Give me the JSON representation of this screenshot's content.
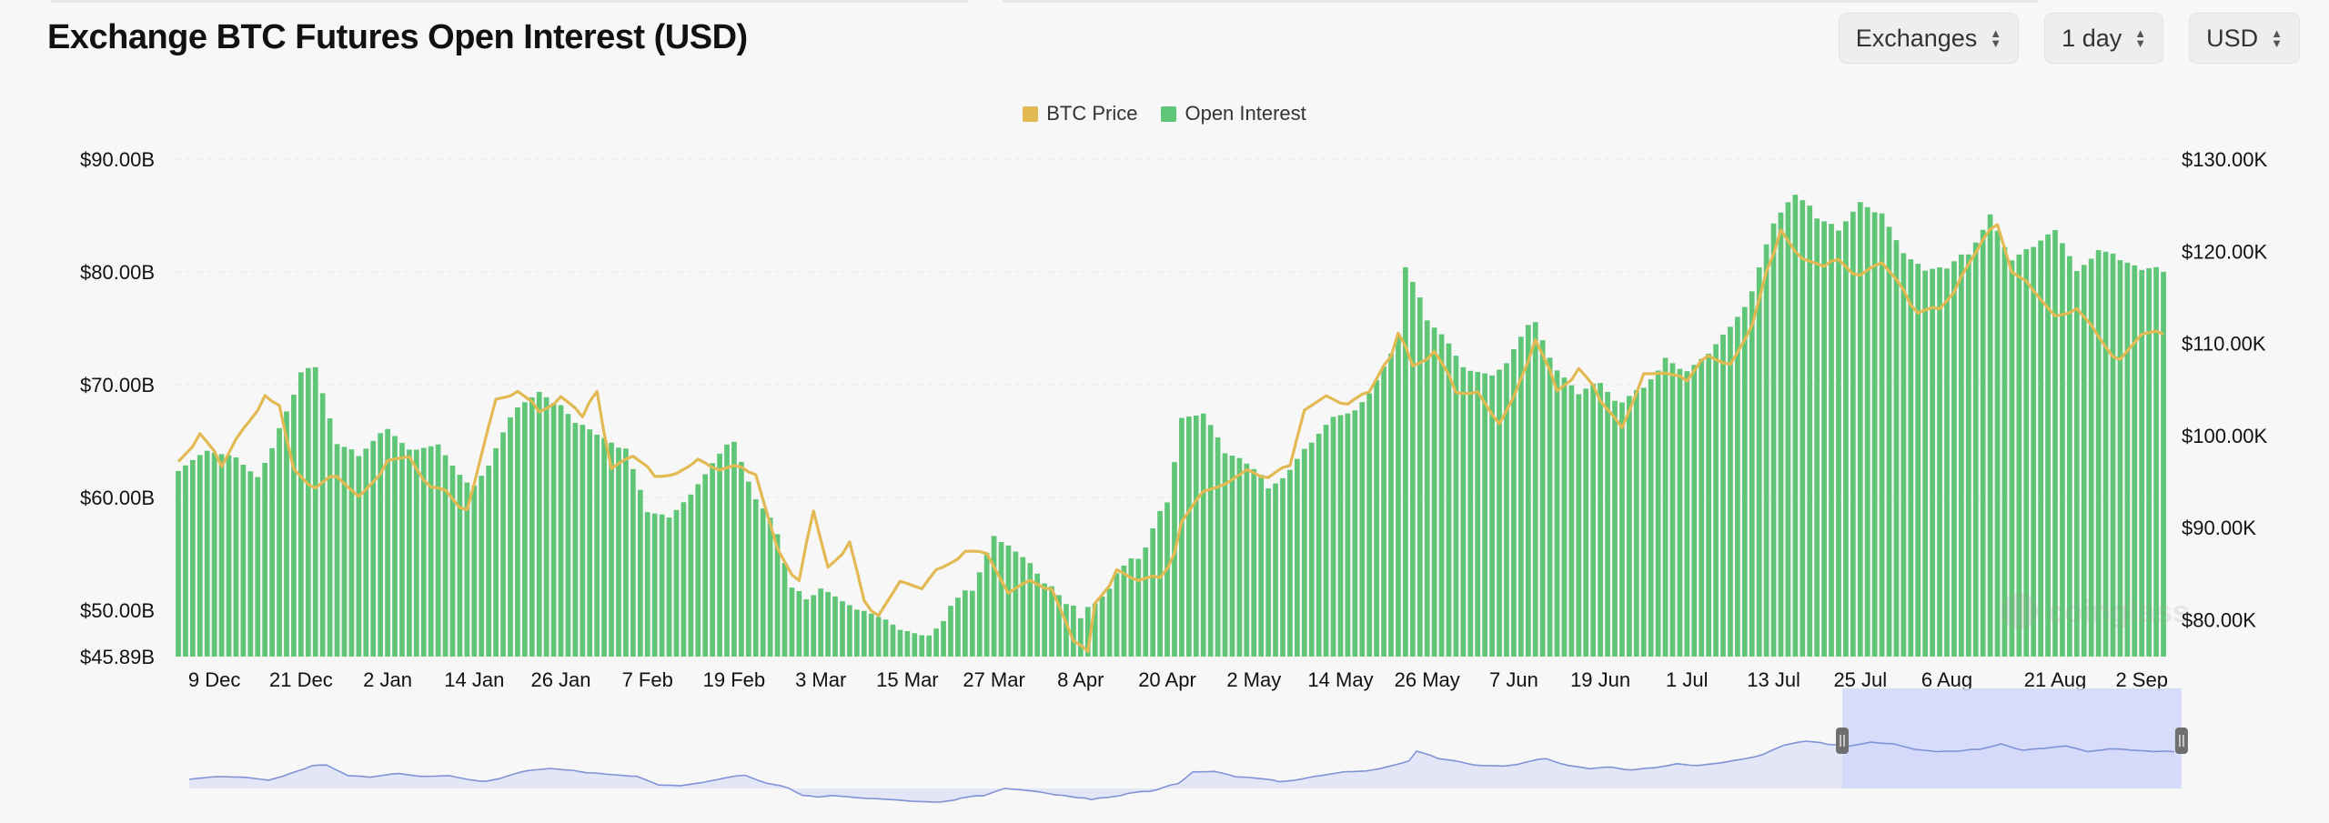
{
  "header": {
    "title": "Exchange BTC Futures Open Interest (USD)",
    "selects": [
      {
        "label": "Exchanges"
      },
      {
        "label": "1 day"
      },
      {
        "label": "USD"
      }
    ]
  },
  "colors": {
    "open_interest": "#5ec676",
    "btc_price": "#e2b953",
    "navigator_line": "#7f93d6",
    "navigator_fill": "#e3e6f7",
    "navigator_window": "#d3d8fb"
  },
  "icons": {
    "select_chevron": "chevron-up-down-icon",
    "navigator_handle": "drag-handle-icon"
  },
  "watermark": "coinglass",
  "chart_data": {
    "type": "bar",
    "title": "Exchange BTC Futures Open Interest (USD)",
    "legend": [
      "BTC Price",
      "Open Interest"
    ],
    "legend_position": "top-center",
    "grid": true,
    "x_tick_labels": [
      "9 Dec",
      "21 Dec",
      "2 Jan",
      "14 Jan",
      "26 Jan",
      "7 Feb",
      "19 Feb",
      "3 Mar",
      "15 Mar",
      "27 Mar",
      "8 Apr",
      "20 Apr",
      "2 May",
      "14 May",
      "26 May",
      "7 Jun",
      "19 Jun",
      "1 Jul",
      "13 Jul",
      "25 Jul",
      "6 Aug",
      "21 Aug",
      "2 Sep"
    ],
    "y_left": {
      "tick_labels": [
        "$45.89B",
        "$50.00B",
        "$60.00B",
        "$70.00B",
        "$80.00B",
        "$90.00B"
      ],
      "min": 45.89,
      "max": 90
    },
    "y_right": {
      "tick_labels": [
        "$80.00K",
        "$90.00K",
        "$100.00K",
        "$110.00K",
        "$120.00K",
        "$130.00K"
      ],
      "min": 76,
      "max": 130
    },
    "navigator": {
      "selected_range": [
        "21 Jul",
        "6 Sep"
      ]
    },
    "series": [
      {
        "name": "Open Interest",
        "type": "bar",
        "unit": "B USD",
        "anchors": [
          [
            "4 Dec",
            62.5
          ],
          [
            "9 Dec",
            64
          ],
          [
            "12 Dec",
            64
          ],
          [
            "15 Dec",
            62
          ],
          [
            "18 Dec",
            66
          ],
          [
            "21 Dec",
            71
          ],
          [
            "23 Dec",
            72
          ],
          [
            "26 Dec",
            65
          ],
          [
            "29 Dec",
            64
          ],
          [
            "2 Jan",
            66
          ],
          [
            "6 Jan",
            64
          ],
          [
            "9 Jan",
            65
          ],
          [
            "12 Jan",
            62
          ],
          [
            "14 Jan",
            61
          ],
          [
            "17 Jan",
            64
          ],
          [
            "20 Jan",
            68
          ],
          [
            "23 Jan",
            69
          ],
          [
            "26 Jan",
            68
          ],
          [
            "29 Jan",
            66
          ],
          [
            "1 Feb",
            65
          ],
          [
            "4 Feb",
            64
          ],
          [
            "7 Feb",
            59
          ],
          [
            "10 Feb",
            58.5
          ],
          [
            "13 Feb",
            60
          ],
          [
            "16 Feb",
            63
          ],
          [
            "19 Feb",
            65
          ],
          [
            "22 Feb",
            60
          ],
          [
            "25 Feb",
            57
          ],
          [
            "27 Feb",
            52
          ],
          [
            "1 Mar",
            51
          ],
          [
            "3 Mar",
            51.5
          ],
          [
            "6 Mar",
            50.5
          ],
          [
            "9 Mar",
            49.5
          ],
          [
            "12 Mar",
            49
          ],
          [
            "15 Mar",
            48
          ],
          [
            "18 Mar",
            48
          ],
          [
            "21 Mar",
            50
          ],
          [
            "24 Mar",
            52
          ],
          [
            "27 Mar",
            57
          ],
          [
            "29 Mar",
            56
          ],
          [
            "1 Apr",
            54.5
          ],
          [
            "4 Apr",
            52
          ],
          [
            "7 Apr",
            50
          ],
          [
            "8 Apr",
            49
          ],
          [
            "10 Apr",
            51
          ],
          [
            "13 Apr",
            53
          ],
          [
            "16 Apr",
            55
          ],
          [
            "18 Apr",
            57
          ],
          [
            "20 Apr",
            60
          ],
          [
            "22 Apr",
            67
          ],
          [
            "25 Apr",
            67
          ],
          [
            "28 Apr",
            64
          ],
          [
            "1 May",
            63
          ],
          [
            "4 May",
            61
          ],
          [
            "7 May",
            62
          ],
          [
            "10 May",
            65
          ],
          [
            "13 May",
            67
          ],
          [
            "16 May",
            68
          ],
          [
            "19 May",
            70
          ],
          [
            "22 May",
            74
          ],
          [
            "23 May",
            80
          ],
          [
            "26 May",
            76
          ],
          [
            "29 May",
            74
          ],
          [
            "1 Jun",
            71
          ],
          [
            "4 Jun",
            71
          ],
          [
            "7 Jun",
            73
          ],
          [
            "10 Jun",
            76
          ],
          [
            "13 Jun",
            71
          ],
          [
            "16 Jun",
            69
          ],
          [
            "19 Jun",
            70
          ],
          [
            "22 Jun",
            68
          ],
          [
            "25 Jun",
            70
          ],
          [
            "28 Jun",
            72
          ],
          [
            "1 Jul",
            71
          ],
          [
            "4 Jul",
            73
          ],
          [
            "7 Jul",
            75
          ],
          [
            "10 Jul",
            78
          ],
          [
            "13 Jul",
            84
          ],
          [
            "16 Jul",
            87
          ],
          [
            "19 Jul",
            85
          ],
          [
            "22 Jul",
            84
          ],
          [
            "25 Jul",
            86
          ],
          [
            "28 Jul",
            85
          ],
          [
            "1 Aug",
            81
          ],
          [
            "3 Aug",
            80
          ],
          [
            "6 Aug",
            80
          ],
          [
            "9 Aug",
            82
          ],
          [
            "12 Aug",
            85
          ],
          [
            "15 Aug",
            81
          ],
          [
            "18 Aug",
            82
          ],
          [
            "21 Aug",
            84
          ],
          [
            "24 Aug",
            80
          ],
          [
            "27 Aug",
            82
          ],
          [
            "30 Aug",
            81
          ],
          [
            "2 Sep",
            80
          ],
          [
            "5 Sep",
            80
          ]
        ]
      },
      {
        "name": "BTC Price",
        "type": "line",
        "unit": "K USD",
        "anchors": [
          [
            "4 Dec",
            97
          ],
          [
            "7 Dec",
            100
          ],
          [
            "10 Dec",
            97
          ],
          [
            "13 Dec",
            101
          ],
          [
            "16 Dec",
            104
          ],
          [
            "18 Dec",
            103
          ],
          [
            "20 Dec",
            96
          ],
          [
            "23 Dec",
            94
          ],
          [
            "26 Dec",
            96
          ],
          [
            "29 Dec",
            93.5
          ],
          [
            "2 Jan",
            97
          ],
          [
            "5 Jan",
            98
          ],
          [
            "8 Jan",
            94
          ],
          [
            "10 Jan",
            94
          ],
          [
            "13 Jan",
            91.5
          ],
          [
            "14 Jan",
            95
          ],
          [
            "17 Jan",
            104
          ],
          [
            "20 Jan",
            105
          ],
          [
            "23 Jan",
            103
          ],
          [
            "26 Jan",
            104
          ],
          [
            "29 Jan",
            102
          ],
          [
            "31 Jan",
            105
          ],
          [
            "2 Feb",
            96
          ],
          [
            "5 Feb",
            98
          ],
          [
            "8 Feb",
            96
          ],
          [
            "11 Feb",
            96
          ],
          [
            "14 Feb",
            97
          ],
          [
            "17 Feb",
            96
          ],
          [
            "20 Feb",
            97
          ],
          [
            "22 Feb",
            96
          ],
          [
            "25 Feb",
            88
          ],
          [
            "28 Feb",
            84
          ],
          [
            "2 Mar",
            92
          ],
          [
            "4 Mar",
            86
          ],
          [
            "7 Mar",
            88
          ],
          [
            "9 Mar",
            82
          ],
          [
            "11 Mar",
            80
          ],
          [
            "14 Mar",
            84
          ],
          [
            "17 Mar",
            83
          ],
          [
            "20 Mar",
            86
          ],
          [
            "23 Mar",
            87
          ],
          [
            "26 Mar",
            87
          ],
          [
            "29 Mar",
            83
          ],
          [
            "1 Apr",
            84
          ],
          [
            "4 Apr",
            83
          ],
          [
            "7 Apr",
            78
          ],
          [
            "9 Apr",
            77
          ],
          [
            "10 Apr",
            82
          ],
          [
            "13 Apr",
            85
          ],
          [
            "16 Apr",
            84
          ],
          [
            "19 Apr",
            85
          ],
          [
            "21 Apr",
            87
          ],
          [
            "22 Apr",
            91
          ],
          [
            "25 Apr",
            94
          ],
          [
            "28 Apr",
            95
          ],
          [
            "1 May",
            96
          ],
          [
            "4 May",
            95
          ],
          [
            "7 May",
            97
          ],
          [
            "9 May",
            103
          ],
          [
            "12 May",
            104
          ],
          [
            "15 May",
            103
          ],
          [
            "18 May",
            105
          ],
          [
            "21 May",
            109
          ],
          [
            "22 May",
            111
          ],
          [
            "24 May",
            108
          ],
          [
            "27 May",
            109
          ],
          [
            "30 May",
            105
          ],
          [
            "2 Jun",
            105
          ],
          [
            "5 Jun",
            101
          ],
          [
            "8 Jun",
            106
          ],
          [
            "10 Jun",
            110
          ],
          [
            "13 Jun",
            105
          ],
          [
            "16 Jun",
            107
          ],
          [
            "19 Jun",
            104
          ],
          [
            "22 Jun",
            101
          ],
          [
            "25 Jun",
            107
          ],
          [
            "28 Jun",
            107
          ],
          [
            "1 Jul",
            106
          ],
          [
            "4 Jul",
            109
          ],
          [
            "7 Jul",
            108
          ],
          [
            "10 Jul",
            112
          ],
          [
            "12 Jul",
            118
          ],
          [
            "14 Jul",
            122
          ],
          [
            "17 Jul",
            119
          ],
          [
            "20 Jul",
            118
          ],
          [
            "22 Jul",
            119
          ],
          [
            "25 Jul",
            117
          ],
          [
            "28 Jul",
            119
          ],
          [
            "31 Jul",
            116
          ],
          [
            "2 Aug",
            113
          ],
          [
            "5 Aug",
            114
          ],
          [
            "8 Aug",
            117
          ],
          [
            "11 Aug",
            121
          ],
          [
            "13 Aug",
            123
          ],
          [
            "15 Aug",
            118
          ],
          [
            "18 Aug",
            116
          ],
          [
            "21 Aug",
            113
          ],
          [
            "24 Aug",
            114
          ],
          [
            "27 Aug",
            111
          ],
          [
            "30 Aug",
            108
          ],
          [
            "2 Sep",
            111
          ],
          [
            "5 Sep",
            111
          ]
        ]
      }
    ]
  }
}
